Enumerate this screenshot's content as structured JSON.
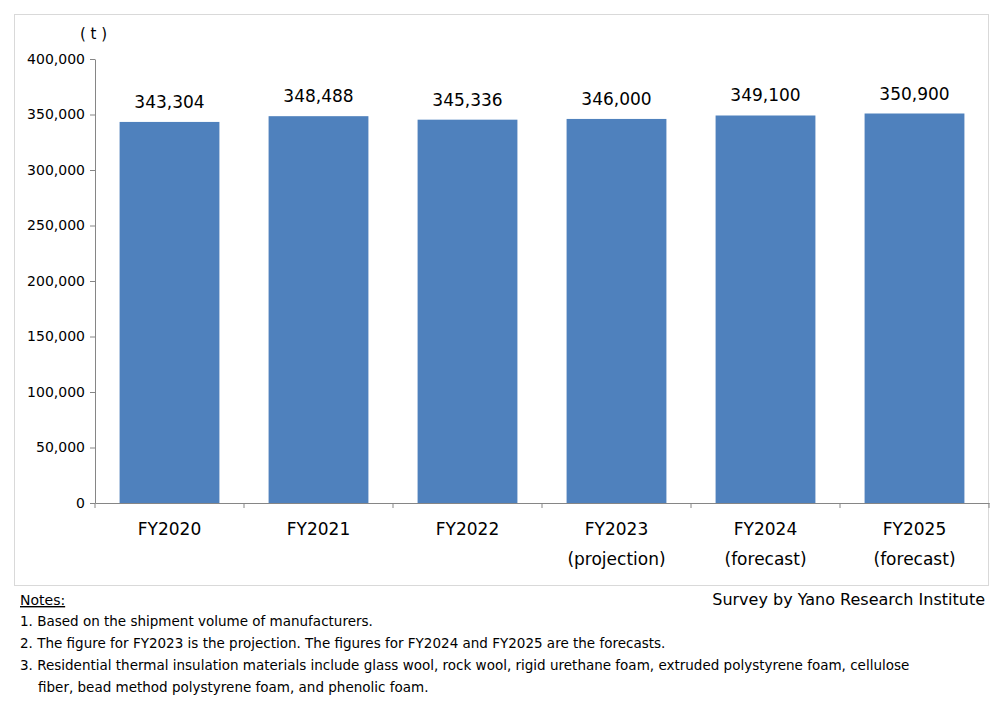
{
  "chart_data": {
    "type": "bar",
    "unit_label": "( t )",
    "categories": [
      "FY2020",
      "FY2021",
      "FY2022",
      "FY2023\n(projection)",
      "FY2024\n(forecast)",
      "FY2025\n(forecast)"
    ],
    "values": [
      343304,
      348488,
      345336,
      346000,
      349100,
      350900
    ],
    "value_labels": [
      "343,304",
      "348,488",
      "345,336",
      "346,000",
      "349,100",
      "350,900"
    ],
    "data_labels": true,
    "color": "#4f81bd",
    "grid": false,
    "ylim": [
      0,
      400000
    ],
    "yticks": [
      0,
      {
        "value": 50000,
        "label": "50,000"
      },
      {
        "value": 100000,
        "label": "100,000"
      },
      {
        "value": 150000,
        "label": "150,000"
      },
      {
        "value": 200000,
        "label": "200,000"
      },
      {
        "value": 250000,
        "label": "250,000"
      },
      {
        "value": 300000,
        "label": "300,000"
      },
      {
        "value": 350000,
        "label": "350,000"
      },
      {
        "value": 400000,
        "label": "400,000"
      }
    ],
    "notes_title": "Notes:",
    "notes": [
      "1. Based on the shipment volume of manufacturers.",
      "2. The figure for FY2023 is the projection. The figures for FY2024 and FY2025 are the forecasts.",
      "3. Residential thermal insulation materials include glass wool, rock wool, rigid urethane foam, extruded polystyrene foam, cellulose",
      "fiber, bead method polystyrene foam, and phenolic foam."
    ],
    "source": "Survey by Yano Research Institute"
  }
}
